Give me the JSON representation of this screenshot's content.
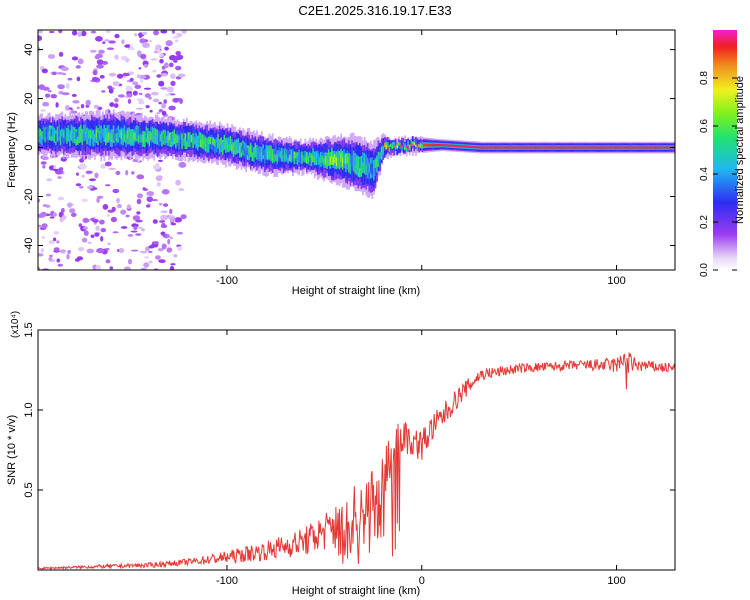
{
  "title": "C2E1.2025.316.19.17.E33",
  "chart_data": [
    {
      "type": "heatmap",
      "xlabel": "Height of straight line (km)",
      "ylabel": "Frequency (Hz)",
      "xlim": [
        -197,
        130
      ],
      "ylim": [
        -50,
        48
      ],
      "xticks": [
        -100,
        0,
        100
      ],
      "xtick_labels": [
        "-100",
        "",
        "100"
      ],
      "yticks": [
        -40,
        -20,
        0,
        20,
        40
      ],
      "ytick_labels": [
        "-40",
        "-20",
        "0",
        "20",
        "40"
      ],
      "colorbar": {
        "label": "Normalized spectral amplitude",
        "range": [
          0.0,
          1.0
        ],
        "ticks": [
          0.0,
          0.2,
          0.4,
          0.6,
          0.8
        ],
        "tick_labels": [
          "0.0",
          "0.2",
          "0.4",
          "0.6",
          "0.8"
        ]
      },
      "ridge": {
        "x": [
          -197,
          -160,
          -130,
          -100,
          -80,
          -60,
          -45,
          -35,
          -25,
          -20,
          -15,
          -5,
          0,
          10,
          30,
          60,
          100,
          130
        ],
        "freq_center": [
          5,
          5,
          4,
          1,
          -3,
          -4,
          -5,
          -6,
          -9,
          0,
          0,
          1,
          1,
          1,
          0,
          0,
          0,
          0
        ],
        "half_width": [
          5,
          6,
          5,
          5,
          5,
          4,
          6,
          7,
          7,
          3,
          2,
          2,
          2,
          1.5,
          1.5,
          1.5,
          1.5,
          1.5
        ],
        "peak_amplitude": [
          0.45,
          0.5,
          0.5,
          0.5,
          0.45,
          0.5,
          0.55,
          0.5,
          0.45,
          0.7,
          0.85,
          0.85,
          0.9,
          0.95,
          0.95,
          0.95,
          0.95,
          0.95
        ]
      }
    },
    {
      "type": "line",
      "xlabel": "Height of straight line (km)",
      "ylabel": "SNR (10 * v/v)",
      "y_multiplier": "(x10⁴)",
      "xlim": [
        -197,
        130
      ],
      "ylim": [
        0,
        1.5
      ],
      "xticks": [
        -100,
        0,
        100
      ],
      "xtick_labels": [
        "-100",
        "0",
        "100"
      ],
      "yticks": [
        0.5,
        1.0,
        1.5
      ],
      "ytick_labels": [
        "0.5",
        "1.0",
        "1.5"
      ],
      "color": "#e53935",
      "series": [
        {
          "name": "SNR",
          "x": [
            -197,
            -170,
            -140,
            -120,
            -100,
            -80,
            -60,
            -40,
            -30,
            -20,
            -15,
            -10,
            -5,
            0,
            5,
            10,
            20,
            30,
            50,
            80,
            100,
            105,
            110,
            130
          ],
          "y": [
            0.01,
            0.02,
            0.03,
            0.05,
            0.08,
            0.12,
            0.18,
            0.3,
            0.38,
            0.45,
            0.75,
            0.85,
            0.8,
            0.78,
            0.88,
            0.95,
            1.1,
            1.22,
            1.26,
            1.28,
            1.28,
            1.3,
            1.28,
            1.26
          ],
          "noise": [
            0.005,
            0.01,
            0.015,
            0.02,
            0.04,
            0.06,
            0.09,
            0.15,
            0.22,
            0.28,
            0.12,
            0.12,
            0.1,
            0.1,
            0.09,
            0.08,
            0.06,
            0.04,
            0.03,
            0.03,
            0.05,
            0.08,
            0.04,
            0.03
          ]
        }
      ]
    }
  ]
}
